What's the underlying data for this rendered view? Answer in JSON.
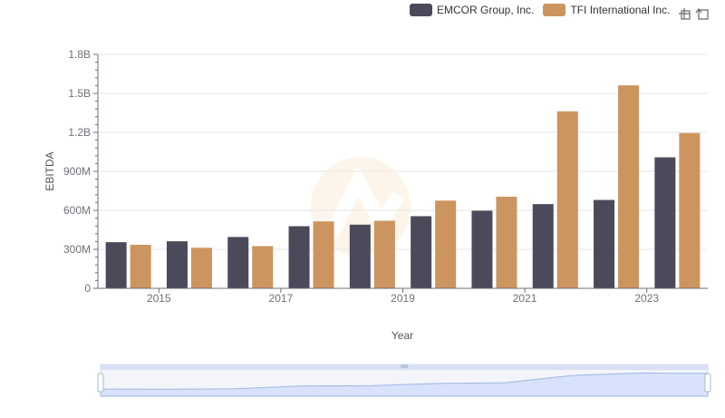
{
  "chart_data": {
    "type": "bar",
    "xlabel": "Year",
    "ylabel": "EBITDA",
    "categories": [
      "2014",
      "2015",
      "2016",
      "2017",
      "2018",
      "2019",
      "2020",
      "2021",
      "2022",
      "2023"
    ],
    "x_tick_labels": [
      "2015",
      "2017",
      "2019",
      "2021",
      "2023"
    ],
    "y_tick_labels": [
      "0",
      "300M",
      "600M",
      "900M",
      "1.2B",
      "1.5B",
      "1.8B"
    ],
    "ylim": [
      0,
      1800000000
    ],
    "grid": true,
    "legend_position": "top-right",
    "series": [
      {
        "name": "EMCOR Group, Inc.",
        "color": "#4a4a5a",
        "values": [
          355000000,
          362000000,
          395000000,
          478000000,
          490000000,
          555000000,
          597000000,
          648000000,
          680000000,
          1008000000
        ]
      },
      {
        "name": "TFI International Inc.",
        "color": "#cc945e",
        "values": [
          335000000,
          312000000,
          325000000,
          515000000,
          520000000,
          675000000,
          705000000,
          1362000000,
          1562000000,
          1195000000
        ]
      }
    ]
  },
  "toolbox": {
    "zoom_icon": "zoom-icon",
    "restore_icon": "restore-icon"
  },
  "datazoom": {
    "handle_color": "#a7b7cc",
    "fill_color": "#d8e2fb"
  }
}
